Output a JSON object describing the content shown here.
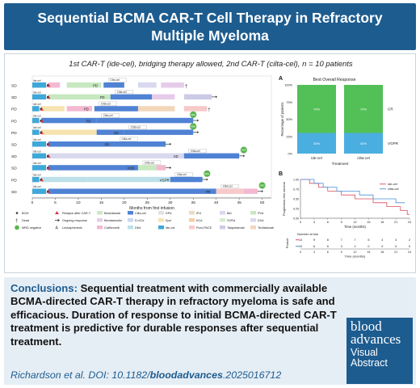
{
  "header": {
    "title_line1": "Sequential BCMA CAR-T Cell Therapy in Refractory",
    "title_line2": "Multiple Myeloma"
  },
  "subtitle": "1st CAR-T (ide-cel), bridging therapy allowed, 2nd CAR-T (cilta-cel), n = 10 patients",
  "swimmer": {
    "xlabel": "Months from first infusion",
    "xticks": [
      0,
      5,
      10,
      15,
      20,
      25,
      30,
      35,
      40,
      45,
      50
    ],
    "xmax": 52,
    "tag_idecel": "Ide-cel",
    "tag_ciltacel": "Cilta-cel",
    "mrd_label": "MRD",
    "rows": [
      {
        "resp1": "SD",
        "ide_end": 3,
        "relapse": 3.5,
        "segs": [
          {
            "s": 3.5,
            "e": 6,
            "t": "Cs"
          },
          {
            "s": 7.5,
            "e": 15,
            "t": "Pd"
          },
          {
            "s": 15.5,
            "e": 20,
            "t": "Cv"
          },
          {
            "s": 23,
            "e": 27,
            "t": "Ds"
          },
          {
            "s": 28,
            "e": 33,
            "t": "Bd"
          }
        ],
        "cilta": 15.5,
        "resp2": "PD",
        "end": 33,
        "death": true
      },
      {
        "resp1": "SD",
        "ide_end": 3,
        "relapse": 3.5,
        "segs": [
          {
            "s": 3.5,
            "e": 17,
            "t": "Pd"
          },
          {
            "s": 17,
            "e": 26,
            "t": "Cv"
          },
          {
            "s": 26,
            "e": 31,
            "t": "Bd"
          },
          {
            "s": 33,
            "e": 39,
            "t": "Tq"
          }
        ],
        "cilta": 17,
        "resp2": "PD",
        "end": 39,
        "death": false
      },
      {
        "resp1": "PD",
        "ide_end": 1.5,
        "relapse": 2,
        "segs": [
          {
            "s": 2,
            "e": 7,
            "t": "Ep"
          },
          {
            "s": 7.5,
            "e": 13,
            "t": "Cs"
          },
          {
            "s": 13.5,
            "e": 23,
            "t": "Cv"
          },
          {
            "s": 23,
            "e": 31,
            "t": "Ta"
          },
          {
            "s": 33,
            "e": 38,
            "t": "Pm"
          }
        ],
        "cilta": 13.5,
        "resp2": "PD",
        "end": 38,
        "death": true
      },
      {
        "resp1": "PD",
        "ide_end": 1.5,
        "relapse": 2,
        "segs": [
          {
            "s": 2,
            "e": 14,
            "t": "Cv"
          },
          {
            "s": 14,
            "e": 35,
            "t": "Cv"
          }
        ],
        "cilta": 14,
        "resp2": "PD",
        "end": 35,
        "death": false,
        "mrd": 35
      },
      {
        "resp1": "PD",
        "ide_end": 1.5,
        "relapse": 2,
        "segs": [
          {
            "s": 2,
            "e": 14,
            "t": "Ep"
          },
          {
            "s": 14,
            "e": 20,
            "t": "Cv"
          },
          {
            "s": 20,
            "e": 35,
            "t": "Cv"
          }
        ],
        "cilta": 20,
        "resp2": "SD",
        "end": 35,
        "death": false,
        "mrd": 35
      },
      {
        "resp1": "SD",
        "ide_end": 3,
        "relapse": 3.5,
        "segs": [
          {
            "s": 3.5,
            "e": 18,
            "t": "Cv"
          },
          {
            "s": 18,
            "e": 29,
            "t": "Cv"
          }
        ],
        "cilta": 18,
        "resp2": "PR",
        "end": 29,
        "death": false
      },
      {
        "resp1": "SD",
        "ide_end": 3,
        "relapse": 3.5,
        "segs": [
          {
            "s": 3.5,
            "e": 33,
            "t": "Ds"
          },
          {
            "s": 33,
            "e": 45,
            "t": "Cv"
          }
        ],
        "cilta": 33,
        "resp2": "SD",
        "end": 45,
        "death": false,
        "mrd": 46
      },
      {
        "resp1": "SD",
        "ide_end": 3,
        "relapse": 3.5,
        "segs": [
          {
            "s": 3.5,
            "e": 23,
            "t": "Cv"
          },
          {
            "s": 23,
            "e": 27,
            "t": "Pd"
          },
          {
            "s": 27,
            "e": 29,
            "t": "Cs"
          }
        ],
        "cilta": 23,
        "resp2": "KSD",
        "end": 29,
        "death": false
      },
      {
        "resp1": "PD",
        "ide_end": 1.5,
        "relapse": 2,
        "segs": [
          {
            "s": 2,
            "e": 12,
            "t": "Dk"
          },
          {
            "s": 12,
            "e": 30,
            "t": "Dk"
          },
          {
            "s": 30,
            "e": 37,
            "t": "Cv"
          }
        ],
        "cilta": 30,
        "resp2": "VGPR",
        "end": 37,
        "death": false,
        "mrd": 38
      },
      {
        "resp1": "SD",
        "ide_end": 3,
        "relapse": 3.5,
        "segs": [
          {
            "s": 3.5,
            "e": 40,
            "t": "Cv"
          },
          {
            "s": 40,
            "e": 46,
            "t": "Pm"
          },
          {
            "s": 46,
            "e": 49,
            "t": "Cs"
          }
        ],
        "cilta": 40,
        "resp2": "PR",
        "end": 49,
        "death": false,
        "mrd": 50
      }
    ],
    "legend": [
      {
        "t": "sym_bcm",
        "label": "BCM",
        "color": "#333333"
      },
      {
        "t": "sym_relapse",
        "label": "Relapse after CAR-T",
        "color": "#d63a4a"
      },
      {
        "t": "sym_dead",
        "label": "Dead",
        "color": "#333333"
      },
      {
        "t": "sym_ongoing",
        "label": "Ongoing response",
        "color": "#333333"
      },
      {
        "t": "sym_mrd",
        "label": "MRD negative",
        "color": "#57b84a"
      },
      {
        "t": "sym_leuk",
        "label": "Leukapheresis",
        "color": "#333333"
      },
      {
        "t": "Bo",
        "label": "Belantamab",
        "color": "#cfe7c8"
      },
      {
        "t": "Bd",
        "label": "Bendamustin",
        "color": "#e6ccea"
      },
      {
        "t": "Cs",
        "label": "Carfilzomib",
        "color": "#f4b8d2"
      },
      {
        "t": "Cv",
        "label": "Cilta-cel",
        "color": "#4f82d4"
      },
      {
        "t": "Dc",
        "label": "D-VCd",
        "color": "#c8d8f0"
      },
      {
        "t": "Dk",
        "label": "DKd",
        "color": "#bde0ea"
      },
      {
        "t": "Dp",
        "label": "DPd",
        "color": "#e2e2e2"
      },
      {
        "t": "Ep",
        "label": "Epd",
        "color": "#f6e3b0"
      },
      {
        "t": "Iv",
        "label": "Ide-cel",
        "color": "#3ea8d8"
      },
      {
        "t": "Ip",
        "label": "IPd",
        "color": "#e8dcc2"
      },
      {
        "t": "Kc",
        "label": "KCd",
        "color": "#f3d0a6"
      },
      {
        "t": "Pm",
        "label": "Pom-PACE",
        "color": "#f7c9c9"
      },
      {
        "t": "Bv",
        "label": "Bld",
        "color": "#ded5ee"
      },
      {
        "t": "Sv",
        "label": "SVRd",
        "color": "#d4edd0"
      },
      {
        "t": "Tq",
        "label": "Talquetamab",
        "color": "#cbcbe6"
      },
      {
        "t": "Pd",
        "label": "PVd",
        "color": "#c8e8c0"
      },
      {
        "t": "Ds",
        "label": "DVd",
        "color": "#d8d8ee"
      },
      {
        "t": "Ta",
        "label": "Teclistamab",
        "color": "#f3d6b8"
      }
    ]
  },
  "panel_a": {
    "letter": "A",
    "title": "Best Overall Response",
    "ylabel": "Percentage of patients",
    "xlabel": "Treatment",
    "ymax": 100,
    "yticks": [
      0,
      25,
      50,
      75,
      100
    ],
    "ytick_labels": [
      "0%",
      "25%",
      "50%",
      "75%",
      "100%"
    ],
    "categories": [
      "ide-cel",
      "cilta-cel"
    ],
    "series": [
      {
        "name": "VGPR",
        "values": [
          30,
          30
        ],
        "color": "#4aaee0"
      },
      {
        "name": "CR",
        "values": [
          70,
          70
        ],
        "color": "#52c057"
      }
    ],
    "value_labels": [
      [
        "30%",
        "70%"
      ],
      [
        "30%",
        "70%"
      ]
    ]
  },
  "panel_b": {
    "letter": "B",
    "ylabel": "Progression-free survival",
    "xlabel": "Time (months)",
    "xmax": 24,
    "xticks": [
      0,
      3,
      6,
      9,
      12,
      15,
      18,
      21,
      24
    ],
    "yticks": [
      0,
      0.25,
      0.5,
      0.75,
      1
    ],
    "ytick_labels": [
      "0.00",
      "0.25",
      "0.50",
      "0.75",
      "1.00"
    ],
    "series": [
      {
        "name": "ide-cel",
        "color": "#d94f5c",
        "steps": [
          [
            0,
            1
          ],
          [
            2,
            0.9
          ],
          [
            4,
            0.8
          ],
          [
            6,
            0.7
          ],
          [
            9,
            0.6
          ],
          [
            12,
            0.5
          ],
          [
            16,
            0.4
          ],
          [
            19,
            0.3
          ],
          [
            22,
            0.2
          ],
          [
            23.5,
            0.1
          ]
        ]
      },
      {
        "name": "cilta-cel",
        "color": "#4a90d9",
        "steps": [
          [
            0,
            1
          ],
          [
            3,
            0.9
          ],
          [
            5,
            0.8
          ],
          [
            8,
            0.7
          ],
          [
            13,
            0.6
          ],
          [
            16,
            0.5
          ],
          [
            21,
            0.4
          ]
        ]
      }
    ],
    "risk_title": "Number at risk",
    "risk_ylabel": "Product",
    "risk_xlabel": "Time (months)",
    "risk_rows": [
      {
        "color": "#d94f5c",
        "values": [
          "10",
          "9",
          "8",
          "7",
          "7",
          "5",
          "4",
          "3",
          "2"
        ]
      },
      {
        "color": "#4a90d9",
        "values": [
          "10",
          "6",
          "5",
          "3",
          "2",
          "0",
          "0",
          "0",
          "0"
        ]
      }
    ]
  },
  "conclusions": {
    "label": "Conclusions:",
    "text": " Sequential treatment with commercially available BCMA-directed CAR-T therapy in refractory myeloma is safe and efficacious. Duration of response to initial BCMA-directed CAR-T treatment is predictive for durable responses after sequential treatment."
  },
  "citation": {
    "prefix": "Richardson et al. DOI: 10.1182/",
    "bold": "bloodadvances",
    "suffix": ".2025016712"
  },
  "logo": {
    "line1": "blood",
    "line2": "advances",
    "line3": "Visual",
    "line4": "Abstract"
  }
}
